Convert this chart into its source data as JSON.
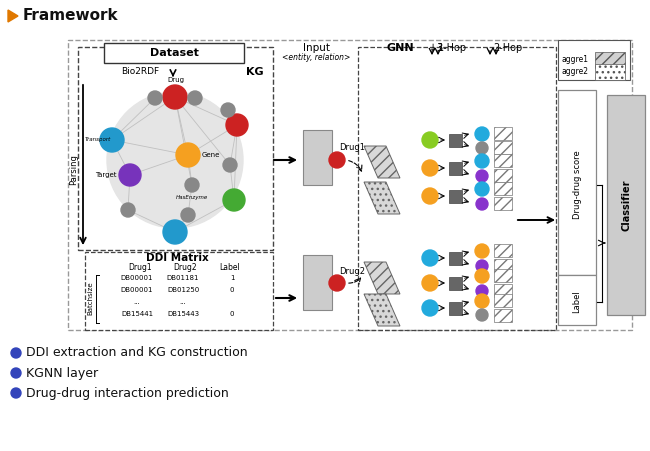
{
  "title": "Framework",
  "bg_color": "#ffffff",
  "bullet_color": "#3344bb",
  "bullets": [
    "DDI extraction and KG construction",
    "KGNN layer",
    "Drug-drug interaction prediction"
  ]
}
